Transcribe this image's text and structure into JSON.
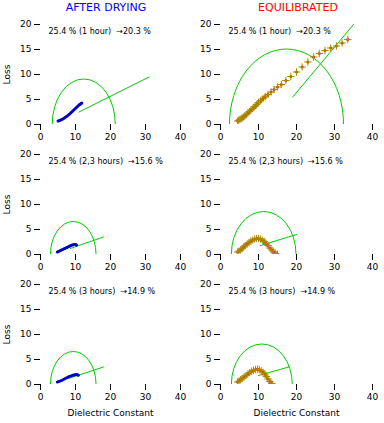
{
  "chart_data": [
    {
      "type": "scatter",
      "title": {
        "text": "AFTER DRYING",
        "color": "#0000FF"
      },
      "annotations": [
        "25.4 % (1 hour)  →20.3 %"
      ],
      "ylabel": "Loss",
      "xlim": [
        0,
        40
      ],
      "ylim": [
        0,
        20
      ],
      "xticks": [
        0,
        10,
        20,
        30,
        40
      ],
      "yticks": [
        0,
        5,
        10,
        15,
        20
      ],
      "grid": false,
      "series": [
        {
          "type": "semicircle",
          "color": "#00CC00",
          "center": [
            12.5,
            0
          ],
          "radius": 9.0
        },
        {
          "type": "line",
          "color": "#00CC00",
          "x": [
            11.0,
            31.0
          ],
          "values": [
            2.5,
            9.5
          ]
        },
        {
          "type": "scatter",
          "color": "#0000CC",
          "marker": "dot",
          "x": [
            5.0,
            5.3,
            5.6,
            5.9,
            6.2,
            6.5,
            6.8,
            7.1,
            7.4,
            7.7,
            8.0,
            8.3,
            8.6,
            8.9,
            9.2,
            9.5,
            9.8,
            10.1,
            10.4,
            10.7,
            11.0,
            11.2,
            11.4,
            11.6,
            11.8
          ],
          "values": [
            0.7,
            0.75,
            0.85,
            0.95,
            1.05,
            1.15,
            1.3,
            1.45,
            1.6,
            1.75,
            1.95,
            2.1,
            2.3,
            2.5,
            2.7,
            2.9,
            3.1,
            3.3,
            3.5,
            3.7,
            3.9,
            4.0,
            4.1,
            4.2,
            4.3
          ]
        }
      ]
    },
    {
      "type": "scatter",
      "title": {
        "text": "EQUILIBRATED",
        "color": "#FF0000"
      },
      "annotations": [
        "25.4 % (1 hour)  →20.3 %"
      ],
      "xlim": [
        0,
        40
      ],
      "ylim": [
        0,
        20
      ],
      "xticks": [
        0,
        10,
        20,
        30,
        40
      ],
      "yticks": [
        0,
        5,
        10,
        15,
        20
      ],
      "grid": false,
      "series": [
        {
          "type": "semicircle",
          "color": "#00CC00",
          "center": [
            17.5,
            0
          ],
          "radius": 15.0
        },
        {
          "type": "line",
          "color": "#00CC00",
          "x": [
            19.0,
            35.0
          ],
          "values": [
            5.5,
            20.0
          ]
        },
        {
          "type": "scatter",
          "color": "#CC2200",
          "marker": "dot",
          "x": [
            4.5,
            4.8,
            5.1,
            5.4,
            5.7,
            6.0,
            6.4,
            6.8,
            7.2,
            7.6,
            8.0,
            8.5,
            9.0,
            9.5,
            10.0,
            10.6,
            11.2,
            11.8,
            12.5,
            13.3,
            14.1,
            15.0,
            16.0,
            17.2,
            18.5,
            20.0,
            21.5,
            23.0,
            24.5,
            26.0,
            27.5,
            29.0,
            30.5,
            32.0,
            33.5
          ],
          "values": [
            0.7,
            0.85,
            1.0,
            1.15,
            1.3,
            1.5,
            1.7,
            2.0,
            2.3,
            2.6,
            2.9,
            3.2,
            3.6,
            4.0,
            4.4,
            4.8,
            5.2,
            5.6,
            6.0,
            6.5,
            7.0,
            7.5,
            8.0,
            8.8,
            9.6,
            10.5,
            11.5,
            12.5,
            13.5,
            14.2,
            14.8,
            15.3,
            15.7,
            16.3,
            17.0
          ]
        },
        {
          "type": "scatter",
          "color": "#AA8800",
          "marker": "plus",
          "x": [
            4.5,
            4.8,
            5.1,
            5.4,
            5.7,
            6.0,
            6.4,
            6.8,
            7.2,
            7.6,
            8.0,
            8.5,
            9.0,
            9.5,
            10.0,
            10.6,
            11.2,
            11.8,
            12.5,
            13.3,
            14.1,
            15.0,
            16.0,
            17.2,
            18.5,
            20.0,
            21.5,
            23.0,
            24.5,
            26.0,
            27.5,
            29.0,
            30.5,
            32.0,
            33.5
          ],
          "values": [
            0.7,
            0.85,
            1.0,
            1.15,
            1.3,
            1.5,
            1.7,
            2.0,
            2.3,
            2.6,
            2.9,
            3.2,
            3.6,
            4.0,
            4.4,
            4.8,
            5.2,
            5.6,
            6.0,
            6.5,
            7.0,
            7.5,
            8.0,
            8.8,
            9.6,
            10.5,
            11.5,
            12.5,
            13.5,
            14.2,
            14.8,
            15.3,
            15.7,
            16.3,
            17.0
          ]
        }
      ]
    },
    {
      "type": "scatter",
      "annotations": [
        "25.4 % (2,3 hours)  →15.6 %"
      ],
      "ylabel": "Loss",
      "xlim": [
        0,
        40
      ],
      "ylim": [
        0,
        20
      ],
      "xticks": [
        0,
        10,
        20,
        30,
        40
      ],
      "yticks": [
        0,
        5,
        10,
        15,
        20
      ],
      "grid": false,
      "series": [
        {
          "type": "semicircle",
          "color": "#00CC00",
          "center": [
            9.5,
            0
          ],
          "radius": 6.5
        },
        {
          "type": "line",
          "color": "#00CC00",
          "x": [
            8.5,
            18.0
          ],
          "values": [
            1.2,
            3.5
          ]
        },
        {
          "type": "scatter",
          "color": "#0000CC",
          "marker": "dot",
          "x": [
            4.8,
            5.1,
            5.4,
            5.7,
            6.0,
            6.3,
            6.6,
            6.9,
            7.2,
            7.5,
            7.8,
            8.1,
            8.4,
            8.7,
            9.0,
            9.3,
            9.6,
            9.9,
            10.1,
            10.3
          ],
          "values": [
            0.5,
            0.6,
            0.7,
            0.8,
            0.9,
            1.0,
            1.1,
            1.2,
            1.3,
            1.4,
            1.5,
            1.6,
            1.7,
            1.8,
            1.9,
            1.95,
            2.0,
            2.0,
            1.95,
            1.9
          ]
        }
      ]
    },
    {
      "type": "scatter",
      "annotations": [
        "25.4 % (2,3 hours)  →15.6 %"
      ],
      "xlim": [
        0,
        40
      ],
      "ylim": [
        0,
        20
      ],
      "xticks": [
        0,
        10,
        20,
        30,
        40
      ],
      "yticks": [
        0,
        5,
        10,
        15,
        20
      ],
      "grid": false,
      "series": [
        {
          "type": "semicircle",
          "color": "#00CC00",
          "center": [
            11.5,
            0
          ],
          "radius": 8.5
        },
        {
          "type": "line",
          "color": "#00CC00",
          "x": [
            10.5,
            20.0
          ],
          "values": [
            1.8,
            4.0
          ]
        },
        {
          "type": "scatter",
          "color": "#CC2200",
          "marker": "dot",
          "x": [
            4.5,
            4.9,
            5.3,
            5.7,
            6.1,
            6.5,
            7.0,
            7.5,
            8.0,
            8.5,
            9.0,
            9.5,
            10.0,
            10.5,
            11.0,
            11.5,
            12.0,
            12.5,
            13.0,
            13.5,
            14.0,
            14.5,
            15.0
          ],
          "values": [
            0.5,
            0.7,
            0.9,
            1.2,
            1.5,
            1.8,
            2.1,
            2.4,
            2.7,
            2.9,
            3.1,
            3.2,
            3.2,
            3.1,
            2.9,
            2.6,
            2.2,
            1.8,
            1.3,
            0.9,
            0.5,
            0.2,
            0.05
          ]
        },
        {
          "type": "scatter",
          "color": "#AA8800",
          "marker": "plus",
          "x": [
            4.5,
            4.9,
            5.3,
            5.7,
            6.1,
            6.5,
            7.0,
            7.5,
            8.0,
            8.5,
            9.0,
            9.5,
            10.0,
            10.5,
            11.0,
            11.5,
            12.0,
            12.5,
            13.0,
            13.5,
            14.0,
            14.5,
            15.0
          ],
          "values": [
            0.5,
            0.7,
            0.9,
            1.2,
            1.5,
            1.8,
            2.1,
            2.4,
            2.7,
            2.9,
            3.1,
            3.2,
            3.2,
            3.1,
            2.9,
            2.6,
            2.2,
            1.8,
            1.3,
            0.9,
            0.5,
            0.2,
            0.05
          ]
        }
      ]
    },
    {
      "type": "scatter",
      "annotations": [
        "25.4 % (3 hours)  →14.9 %"
      ],
      "ylabel": "Loss",
      "xlabel": "Dielectric Constant",
      "xlim": [
        0,
        40
      ],
      "ylim": [
        0,
        20
      ],
      "xticks": [
        0,
        10,
        20,
        30,
        40
      ],
      "yticks": [
        0,
        5,
        10,
        15,
        20
      ],
      "grid": false,
      "series": [
        {
          "type": "semicircle",
          "color": "#00CC00",
          "center": [
            9.5,
            0
          ],
          "radius": 6.5
        },
        {
          "type": "line",
          "color": "#00CC00",
          "x": [
            8.0,
            18.0
          ],
          "values": [
            1.2,
            3.5
          ]
        },
        {
          "type": "scatter",
          "color": "#0000CC",
          "marker": "dot",
          "x": [
            4.8,
            5.2,
            5.6,
            6.0,
            6.4,
            6.8,
            7.2,
            7.6,
            8.0,
            8.4,
            8.8,
            9.2,
            9.5,
            9.8,
            10.1,
            10.4,
            10.6,
            10.8
          ],
          "values": [
            0.5,
            0.6,
            0.7,
            0.8,
            0.95,
            1.1,
            1.25,
            1.4,
            1.55,
            1.65,
            1.75,
            1.85,
            1.9,
            1.95,
            2.0,
            2.0,
            1.95,
            1.85
          ]
        }
      ]
    },
    {
      "type": "scatter",
      "annotations": [
        "25.4 % (3 hours)  →14.9 %"
      ],
      "xlabel": "Dielectric Constant",
      "xlim": [
        0,
        40
      ],
      "ylim": [
        0,
        20
      ],
      "xticks": [
        0,
        10,
        20,
        30,
        40
      ],
      "yticks": [
        0,
        5,
        10,
        15,
        20
      ],
      "grid": false,
      "series": [
        {
          "type": "semicircle",
          "color": "#00CC00",
          "center": [
            11.0,
            0
          ],
          "radius": 8.0
        },
        {
          "type": "line",
          "color": "#00CC00",
          "x": [
            10.0,
            18.0
          ],
          "values": [
            1.8,
            3.5
          ]
        },
        {
          "type": "scatter",
          "color": "#CC2200",
          "marker": "dot",
          "x": [
            4.5,
            4.9,
            5.3,
            5.7,
            6.2,
            6.7,
            7.2,
            7.7,
            8.2,
            8.7,
            9.2,
            9.7,
            10.2,
            10.7,
            11.2,
            11.7,
            12.1,
            12.5,
            13.0,
            13.5
          ],
          "values": [
            0.5,
            0.7,
            0.95,
            1.2,
            1.5,
            1.8,
            2.1,
            2.4,
            2.65,
            2.85,
            3.0,
            3.05,
            2.95,
            2.75,
            2.45,
            2.05,
            1.6,
            1.1,
            0.6,
            0.2
          ]
        },
        {
          "type": "scatter",
          "color": "#AA8800",
          "marker": "plus",
          "x": [
            4.5,
            4.9,
            5.3,
            5.7,
            6.2,
            6.7,
            7.2,
            7.7,
            8.2,
            8.7,
            9.2,
            9.7,
            10.2,
            10.7,
            11.2,
            11.7,
            12.1,
            12.5,
            13.0,
            13.5
          ],
          "values": [
            0.5,
            0.7,
            0.95,
            1.2,
            1.5,
            1.8,
            2.1,
            2.4,
            2.65,
            2.85,
            3.0,
            3.05,
            2.95,
            2.75,
            2.45,
            2.05,
            1.6,
            1.1,
            0.6,
            0.2
          ]
        }
      ]
    }
  ]
}
